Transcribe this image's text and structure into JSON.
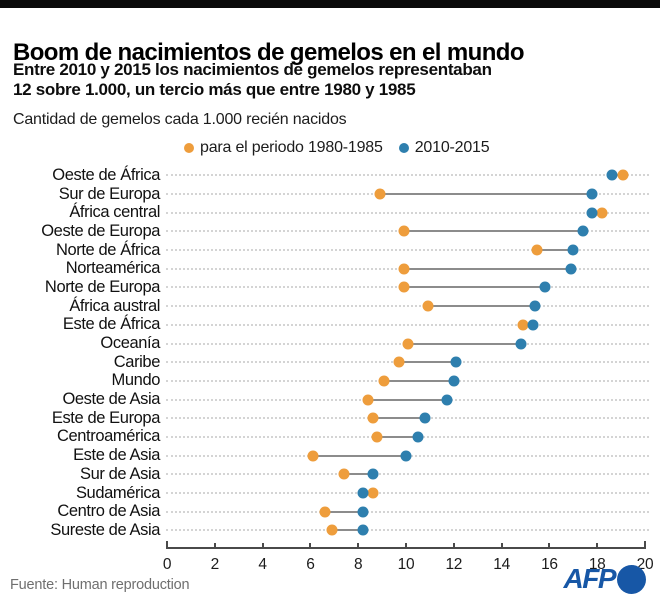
{
  "header": {
    "title": "Boom de nacimientos de gemelos en el mundo",
    "subtitle_line1": "Entre 2010 y 2015 los nacimientos de gemelos representaban",
    "subtitle_line2": "12 sobre 1.000, un tercio más que entre 1980 y 1985",
    "units_label": "Cantidad de gemelos cada 1.000 recién nacidos"
  },
  "legend": {
    "series1_label": "para el periodo 1980-1985",
    "series2_label": "2010-2015"
  },
  "colors": {
    "series1": "#EE9D3C",
    "series2": "#2E7FAE",
    "connector": "#8c8c8c",
    "afp_blue": "#1757a6"
  },
  "chart_data": {
    "type": "scatter",
    "subtype": "dumbbell-dot-plot",
    "title": "Boom de nacimientos de gemelos en el mundo",
    "xlabel": "Cantidad de gemelos cada 1.000 recién nacidos",
    "xlim": [
      0,
      20
    ],
    "x_ticks": [
      0,
      2,
      4,
      6,
      8,
      10,
      12,
      14,
      16,
      18,
      20
    ],
    "grid": "dotted horizontal leader lines per category",
    "legend_position": "top",
    "categories": [
      "Oeste de África",
      "Sur de Europa",
      "África central",
      "Oeste de Europa",
      "Norte de África",
      "Norteamérica",
      "Norte de Europa",
      "África austral",
      "Este de África",
      "Oceanía",
      "Caribe",
      "Mundo",
      "Oeste de Asia",
      "Este de Europa",
      "Centroamérica",
      "Este de Asia",
      "Sur de Asia",
      "Sudamérica",
      "Centro de Asia",
      "Sureste de Asia"
    ],
    "series": [
      {
        "name": "para el periodo 1980-1985",
        "color": "#EE9D3C",
        "values": [
          19.1,
          8.9,
          18.2,
          9.9,
          15.5,
          9.9,
          9.9,
          10.9,
          14.9,
          10.1,
          9.7,
          9.1,
          8.4,
          8.6,
          8.8,
          6.1,
          7.4,
          8.6,
          6.6,
          6.9
        ]
      },
      {
        "name": "2010-2015",
        "color": "#2E7FAE",
        "values": [
          18.6,
          17.8,
          17.8,
          17.4,
          17.0,
          16.9,
          15.8,
          15.4,
          15.3,
          14.8,
          12.1,
          12.0,
          11.7,
          10.8,
          10.5,
          10.0,
          8.6,
          8.2,
          8.2,
          8.2
        ]
      }
    ]
  },
  "footer": {
    "source": "Fuente: Human reproduction",
    "logo_text": "AFP"
  }
}
